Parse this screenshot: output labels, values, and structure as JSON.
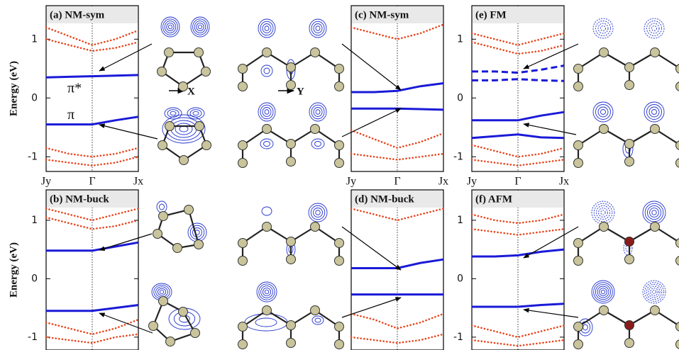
{
  "chart_data": [
    {
      "type": "line",
      "title": "(a) NM-sym",
      "ylabel": "Energy (eV)",
      "xlim": [
        0,
        2
      ],
      "ylim": [
        -1.25,
        1.57
      ],
      "yticks": [
        -1,
        0,
        1
      ],
      "xticks": [
        {
          "value": 0,
          "label": "Jy"
        },
        {
          "value": 1,
          "label": "Γ"
        },
        {
          "value": 2,
          "label": "Jx"
        }
      ],
      "annotations": [
        "π*",
        "π"
      ],
      "x": [
        0,
        0.5,
        1,
        1.5,
        2
      ],
      "series": [
        {
          "color": "#1a1ad8",
          "style": "solid",
          "values": [
            0.35,
            0.36,
            0.37,
            0.38,
            0.39
          ]
        },
        {
          "color": "#1a1ad8",
          "style": "solid",
          "values": [
            -0.45,
            -0.45,
            -0.45,
            -0.38,
            -0.32
          ]
        },
        {
          "color": "#e8441c",
          "style": "dotted",
          "values": [
            1.2,
            1.05,
            0.9,
            1.0,
            1.15
          ]
        },
        {
          "color": "#e8441c",
          "style": "dotted",
          "values": [
            1.0,
            0.9,
            0.8,
            0.85,
            0.95
          ]
        },
        {
          "color": "#e8441c",
          "style": "dotted",
          "values": [
            -0.85,
            -0.95,
            -1.0,
            -0.95,
            -0.85
          ]
        },
        {
          "color": "#e8441c",
          "style": "dotted",
          "values": [
            -1.05,
            -1.1,
            -1.15,
            -1.1,
            -1.0
          ]
        }
      ]
    },
    {
      "type": "line",
      "title": "(b) NM-buck",
      "ylabel": "Energy (eV)",
      "xlim": [
        0,
        2
      ],
      "ylim": [
        -1.22,
        1.52
      ],
      "yticks": [
        -1,
        0,
        1
      ],
      "x": [
        0,
        0.5,
        1,
        1.5,
        2
      ],
      "series": [
        {
          "color": "#1a1ad8",
          "style": "solid",
          "values": [
            0.48,
            0.48,
            0.48,
            0.55,
            0.62
          ]
        },
        {
          "color": "#1a1ad8",
          "style": "solid",
          "values": [
            -0.55,
            -0.55,
            -0.55,
            -0.5,
            -0.45
          ]
        },
        {
          "color": "#e8441c",
          "style": "dotted",
          "values": [
            1.2,
            1.1,
            1.0,
            1.1,
            1.2
          ]
        },
        {
          "color": "#e8441c",
          "style": "dotted",
          "values": [
            1.05,
            0.95,
            0.85,
            0.9,
            1.0
          ]
        },
        {
          "color": "#e8441c",
          "style": "dotted",
          "values": [
            -0.75,
            -0.85,
            -0.95,
            -0.85,
            -0.7
          ]
        },
        {
          "color": "#e8441c",
          "style": "dotted",
          "values": [
            -1.0,
            -1.05,
            -1.1,
            -1.0,
            -0.95
          ]
        }
      ]
    },
    {
      "type": "line",
      "title": "(c) NM-sym",
      "xlim": [
        0,
        2
      ],
      "ylim": [
        -1.25,
        1.57
      ],
      "xticks": [
        {
          "value": 0,
          "label": "Jy"
        },
        {
          "value": 1,
          "label": "Γ"
        },
        {
          "value": 2,
          "label": "Jx"
        }
      ],
      "x": [
        0,
        0.5,
        1,
        1.5,
        2
      ],
      "series": [
        {
          "color": "#1a1ad8",
          "style": "solid",
          "values": [
            0.1,
            0.1,
            0.12,
            0.2,
            0.25
          ]
        },
        {
          "color": "#1a1ad8",
          "style": "solid",
          "values": [
            -0.18,
            -0.18,
            -0.18,
            -0.19,
            -0.2
          ]
        },
        {
          "color": "#e8441c",
          "style": "dotted",
          "values": [
            1.2,
            1.1,
            1.0,
            1.1,
            1.25
          ]
        },
        {
          "color": "#e8441c",
          "style": "dotted",
          "values": [
            -0.55,
            -0.7,
            -0.85,
            -0.75,
            -0.6
          ]
        },
        {
          "color": "#e8441c",
          "style": "dotted",
          "values": [
            -0.95,
            -1.0,
            -1.05,
            -1.0,
            -0.95
          ]
        }
      ]
    },
    {
      "type": "line",
      "title": "(d) NM-buck",
      "xlim": [
        0,
        2
      ],
      "ylim": [
        -1.22,
        1.52
      ],
      "x": [
        0,
        0.5,
        1,
        1.5,
        2
      ],
      "series": [
        {
          "color": "#1a1ad8",
          "style": "solid",
          "values": [
            0.18,
            0.18,
            0.18,
            0.27,
            0.33
          ]
        },
        {
          "color": "#1a1ad8",
          "style": "solid",
          "values": [
            -0.27,
            -0.27,
            -0.27,
            -0.27,
            -0.27
          ]
        },
        {
          "color": "#e8441c",
          "style": "dotted",
          "values": [
            1.2,
            1.1,
            1.0,
            1.1,
            1.2
          ]
        },
        {
          "color": "#e8441c",
          "style": "dotted",
          "values": [
            -0.6,
            -0.7,
            -0.85,
            -0.75,
            -0.6
          ]
        },
        {
          "color": "#e8441c",
          "style": "dotted",
          "values": [
            -1.0,
            -1.05,
            -1.1,
            -1.05,
            -0.95
          ]
        }
      ]
    },
    {
      "type": "line",
      "title": "(e) FM",
      "xlim": [
        0,
        2
      ],
      "ylim": [
        -1.25,
        1.57
      ],
      "yticks": [
        -1,
        0,
        1
      ],
      "xticks": [
        {
          "value": 0,
          "label": "Jy"
        },
        {
          "value": 1,
          "label": "Γ"
        },
        {
          "value": 2,
          "label": "Jx"
        }
      ],
      "x": [
        0,
        0.5,
        1,
        1.5,
        2
      ],
      "series": [
        {
          "color": "#1a1ad8",
          "style": "dashed",
          "values": [
            0.45,
            0.45,
            0.43,
            0.48,
            0.55
          ]
        },
        {
          "color": "#1a1ad8",
          "style": "dashed",
          "values": [
            0.3,
            0.3,
            0.32,
            0.3,
            0.29
          ]
        },
        {
          "color": "#1a1ad8",
          "style": "solid",
          "values": [
            -0.38,
            -0.38,
            -0.38,
            -0.3,
            -0.24
          ]
        },
        {
          "color": "#1a1ad8",
          "style": "solid",
          "values": [
            -0.68,
            -0.65,
            -0.62,
            -0.67,
            -0.68
          ]
        },
        {
          "color": "#e8441c",
          "style": "dotted",
          "values": [
            1.1,
            1.0,
            0.9,
            1.0,
            1.1
          ]
        },
        {
          "color": "#e8441c",
          "style": "dotted",
          "values": [
            0.95,
            0.85,
            0.75,
            0.8,
            0.9
          ]
        },
        {
          "color": "#e8441c",
          "style": "dotted",
          "values": [
            -0.8,
            -0.9,
            -1.0,
            -0.95,
            -0.85
          ]
        },
        {
          "color": "#e8441c",
          "style": "dotted",
          "values": [
            -1.05,
            -1.1,
            -1.15,
            -1.1,
            -1.05
          ]
        }
      ]
    },
    {
      "type": "line",
      "title": "(f) AFM",
      "xlim": [
        0,
        2
      ],
      "ylim": [
        -1.22,
        1.52
      ],
      "yticks": [
        -1,
        0,
        1
      ],
      "x": [
        0,
        0.5,
        1,
        1.5,
        2
      ],
      "series": [
        {
          "color": "#1a1ad8",
          "style": "solid",
          "values": [
            0.38,
            0.38,
            0.4,
            0.46,
            0.5
          ]
        },
        {
          "color": "#1a1ad8",
          "style": "solid",
          "values": [
            -0.48,
            -0.48,
            -0.48,
            -0.45,
            -0.43
          ]
        },
        {
          "color": "#e8441c",
          "style": "dotted",
          "values": [
            1.1,
            1.0,
            0.95,
            1.0,
            1.1
          ]
        },
        {
          "color": "#e8441c",
          "style": "dotted",
          "values": [
            0.85,
            0.8,
            0.75,
            0.8,
            0.85
          ]
        },
        {
          "color": "#e8441c",
          "style": "dotted",
          "values": [
            -0.8,
            -0.9,
            -1.0,
            -0.9,
            -0.8
          ]
        },
        {
          "color": "#e8441c",
          "style": "dotted",
          "values": [
            -1.05,
            -1.1,
            -1.15,
            -1.1,
            -1.05
          ]
        }
      ]
    }
  ],
  "direction_labels": [
    "X",
    "Y"
  ]
}
